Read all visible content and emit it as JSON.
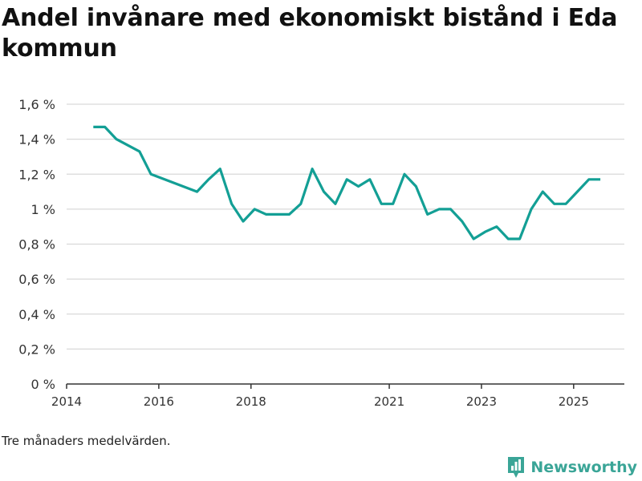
{
  "colors": {
    "line": "#139f95",
    "grid": "#d9d9d9",
    "axis": "#333333",
    "brand": "#3aa597"
  },
  "chart_data": {
    "type": "line",
    "title": "Andel invånare med ekonomiskt bistånd i Eda kommun",
    "xlabel": "",
    "ylabel": "",
    "ylim": [
      0,
      1.6
    ],
    "xlim": [
      2014.0,
      2026.1
    ],
    "y_ticks": [
      {
        "value": 0.0,
        "label": "0 %"
      },
      {
        "value": 0.2,
        "label": "0,2 %"
      },
      {
        "value": 0.4,
        "label": "0,4 %"
      },
      {
        "value": 0.6,
        "label": "0,6 %"
      },
      {
        "value": 0.8,
        "label": "0,8 %"
      },
      {
        "value": 1.0,
        "label": "1 %"
      },
      {
        "value": 1.2,
        "label": "1,2 %"
      },
      {
        "value": 1.4,
        "label": "1,4 %"
      },
      {
        "value": 1.6,
        "label": "1,6 %"
      }
    ],
    "x_ticks": [
      {
        "value": 2014.0,
        "label": "2014"
      },
      {
        "value": 2016.0,
        "label": "2016"
      },
      {
        "value": 2018.0,
        "label": "2018"
      },
      {
        "value": 2021.0,
        "label": "2021"
      },
      {
        "value": 2023.0,
        "label": "2023"
      },
      {
        "value": 2025.0,
        "label": "2025"
      }
    ],
    "series": [
      {
        "name": "Andel invånare med ekonomiskt bistånd",
        "x": [
          2014.58,
          2014.83,
          2015.08,
          2015.58,
          2015.83,
          2016.83,
          2017.08,
          2017.33,
          2017.58,
          2017.83,
          2018.08,
          2018.33,
          2018.58,
          2018.83,
          2019.08,
          2019.33,
          2019.58,
          2019.83,
          2020.08,
          2020.33,
          2020.58,
          2020.83,
          2021.08,
          2021.33,
          2021.58,
          2021.83,
          2022.08,
          2022.33,
          2022.58,
          2022.83,
          2023.08,
          2023.33,
          2023.58,
          2023.83,
          2024.08,
          2024.33,
          2024.58,
          2024.83,
          2025.08,
          2025.33,
          2025.58
        ],
        "values": [
          1.47,
          1.47,
          1.4,
          1.33,
          1.2,
          1.1,
          1.17,
          1.23,
          1.03,
          0.93,
          1.0,
          0.97,
          0.97,
          0.97,
          1.03,
          1.23,
          1.1,
          1.03,
          1.17,
          1.13,
          1.17,
          1.03,
          1.03,
          1.2,
          1.13,
          0.97,
          1.0,
          1.0,
          0.93,
          0.83,
          0.87,
          0.9,
          0.83,
          0.83,
          1.0,
          1.1,
          1.03,
          1.03,
          1.1,
          1.17,
          1.17
        ]
      }
    ],
    "grid": true,
    "legend": "none"
  },
  "footnote": "Tre månaders medelvärden.",
  "brand": {
    "name": "Newsworthy",
    "icon": "bar-chart-logo-icon"
  }
}
